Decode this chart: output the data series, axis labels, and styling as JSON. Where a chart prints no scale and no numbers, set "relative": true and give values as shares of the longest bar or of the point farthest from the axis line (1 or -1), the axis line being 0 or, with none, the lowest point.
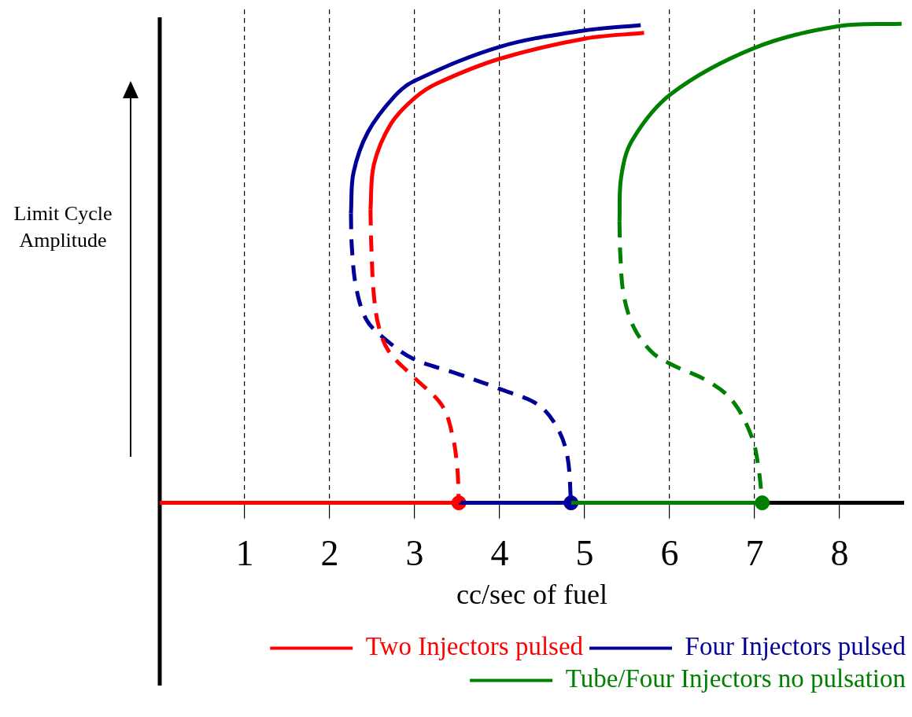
{
  "chart_data": {
    "type": "line",
    "xlabel": "cc/sec of fuel",
    "ylabel": "Limit Cycle Amplitude",
    "relative": true,
    "xlim": [
      0,
      8.76
    ],
    "xticks": [
      1,
      2,
      3,
      4,
      5,
      6,
      7,
      8
    ],
    "grid": "x",
    "legend": "bottom right",
    "series": [
      {
        "name": "Two Injectors pulsed",
        "color": "#ff0000",
        "line_style": "solid",
        "marker": "none",
        "x": [
          2.48,
          2.52,
          2.72,
          3.0,
          3.27,
          4.0,
          5.0,
          5.7
        ],
        "values": [
          0.612,
          0.706,
          0.791,
          0.845,
          0.876,
          0.927,
          0.969,
          0.981
        ]
      },
      {
        "color": "#ff0000",
        "line_style": "dashed",
        "marker": "none",
        "x": [
          2.48,
          2.49,
          2.52,
          2.58,
          2.7,
          2.98,
          3.32,
          3.44,
          3.5,
          3.52
        ],
        "values": [
          0.612,
          0.536,
          0.434,
          0.366,
          0.315,
          0.264,
          0.204,
          0.145,
          0.077,
          0
        ]
      },
      {
        "color": "#ff0000",
        "line_style": "solid",
        "marker": "none",
        "x": [
          0,
          3.52
        ],
        "values": [
          0,
          0
        ]
      },
      {
        "name": "Four Injectors pulsed",
        "color": "#000099",
        "line_style": "solid",
        "marker": "none",
        "x": [
          2.25,
          2.28,
          2.45,
          2.77,
          3.0,
          4.0,
          5.0,
          5.66
        ],
        "values": [
          0.604,
          0.689,
          0.774,
          0.85,
          0.881,
          0.952,
          0.986,
          0.997
        ]
      },
      {
        "color": "#000099",
        "line_style": "dashed",
        "marker": "none",
        "x": [
          2.25,
          2.26,
          2.31,
          2.43,
          2.63,
          2.98,
          3.46,
          4.0,
          4.46,
          4.69,
          4.8,
          4.84
        ],
        "values": [
          0.604,
          0.536,
          0.451,
          0.383,
          0.345,
          0.301,
          0.272,
          0.238,
          0.204,
          0.153,
          0.094,
          0
        ]
      },
      {
        "color": "#000099",
        "line_style": "solid",
        "marker": "none",
        "x": [
          3.52,
          4.84
        ],
        "values": [
          0,
          0
        ]
      },
      {
        "name": "Tube/Four Injectors no pulsation",
        "color": "#008000",
        "line_style": "solid",
        "marker": "none",
        "x": [
          5.41,
          5.43,
          5.56,
          6.02,
          6.99,
          7.99,
          8.73
        ],
        "values": [
          0.587,
          0.68,
          0.757,
          0.854,
          0.949,
          0.995,
          1.0
        ]
      },
      {
        "color": "#008000",
        "line_style": "dashed",
        "marker": "none",
        "x": [
          5.41,
          5.42,
          5.46,
          5.58,
          5.79,
          6.02,
          6.44,
          6.74,
          6.97,
          7.05,
          7.09
        ],
        "values": [
          0.587,
          0.519,
          0.434,
          0.366,
          0.315,
          0.289,
          0.255,
          0.213,
          0.136,
          0.068,
          0
        ]
      },
      {
        "color": "#008000",
        "line_style": "solid",
        "marker": "none",
        "x": [
          4.84,
          7.09
        ],
        "values": [
          0,
          0
        ]
      },
      {
        "type": "scatter",
        "color": "#ff0000",
        "marker": "circle",
        "x": [
          3.52
        ],
        "values": [
          0
        ]
      },
      {
        "type": "scatter",
        "color": "#000099",
        "marker": "circle",
        "x": [
          4.84
        ],
        "values": [
          0
        ]
      },
      {
        "type": "scatter",
        "color": "#008000",
        "marker": "circle",
        "x": [
          7.09
        ],
        "values": [
          0
        ]
      }
    ]
  }
}
